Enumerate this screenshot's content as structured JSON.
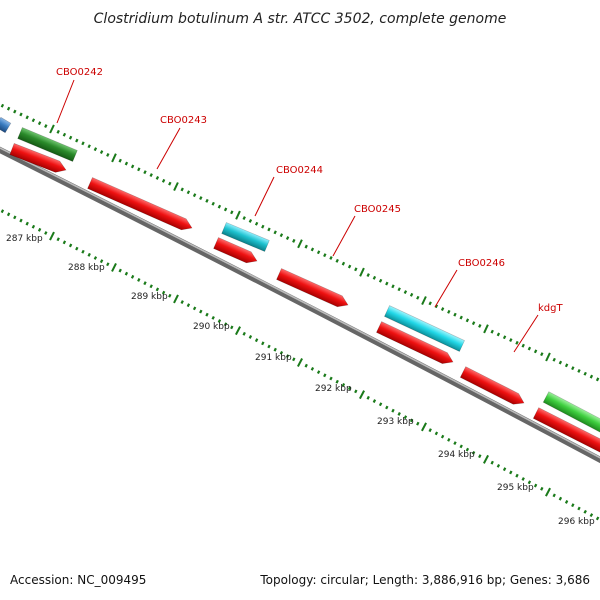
{
  "title": "Clostridium botulinum A str. ATCC 3502, complete genome",
  "footer": {
    "accession": "Accession: NC_009495",
    "stats": "Topology: circular; Length: 3,886,916 bp; Genes: 3,686"
  },
  "gene_labels": [
    "CBO0242",
    "CBO0243",
    "CBO0244",
    "CBO0245",
    "CBO0246",
    "kdgT"
  ],
  "kbp_labels": [
    "287 kbp",
    "288 kbp",
    "289 kbp",
    "290 kbp",
    "291 kbp",
    "292 kbp",
    "293 kbp",
    "294 kbp",
    "295 kbp",
    "296 kbp"
  ],
  "colors": {
    "cds_forward_red": "#ee1111",
    "rna_cyan": "#22d8e8",
    "dark_green": "#2a8a2a",
    "light_green": "#3fcf3f",
    "steel_blue": "#3a7cc0",
    "backbone": "#888888",
    "tick": "#1a7a1a",
    "label_red": "#cc0000"
  }
}
